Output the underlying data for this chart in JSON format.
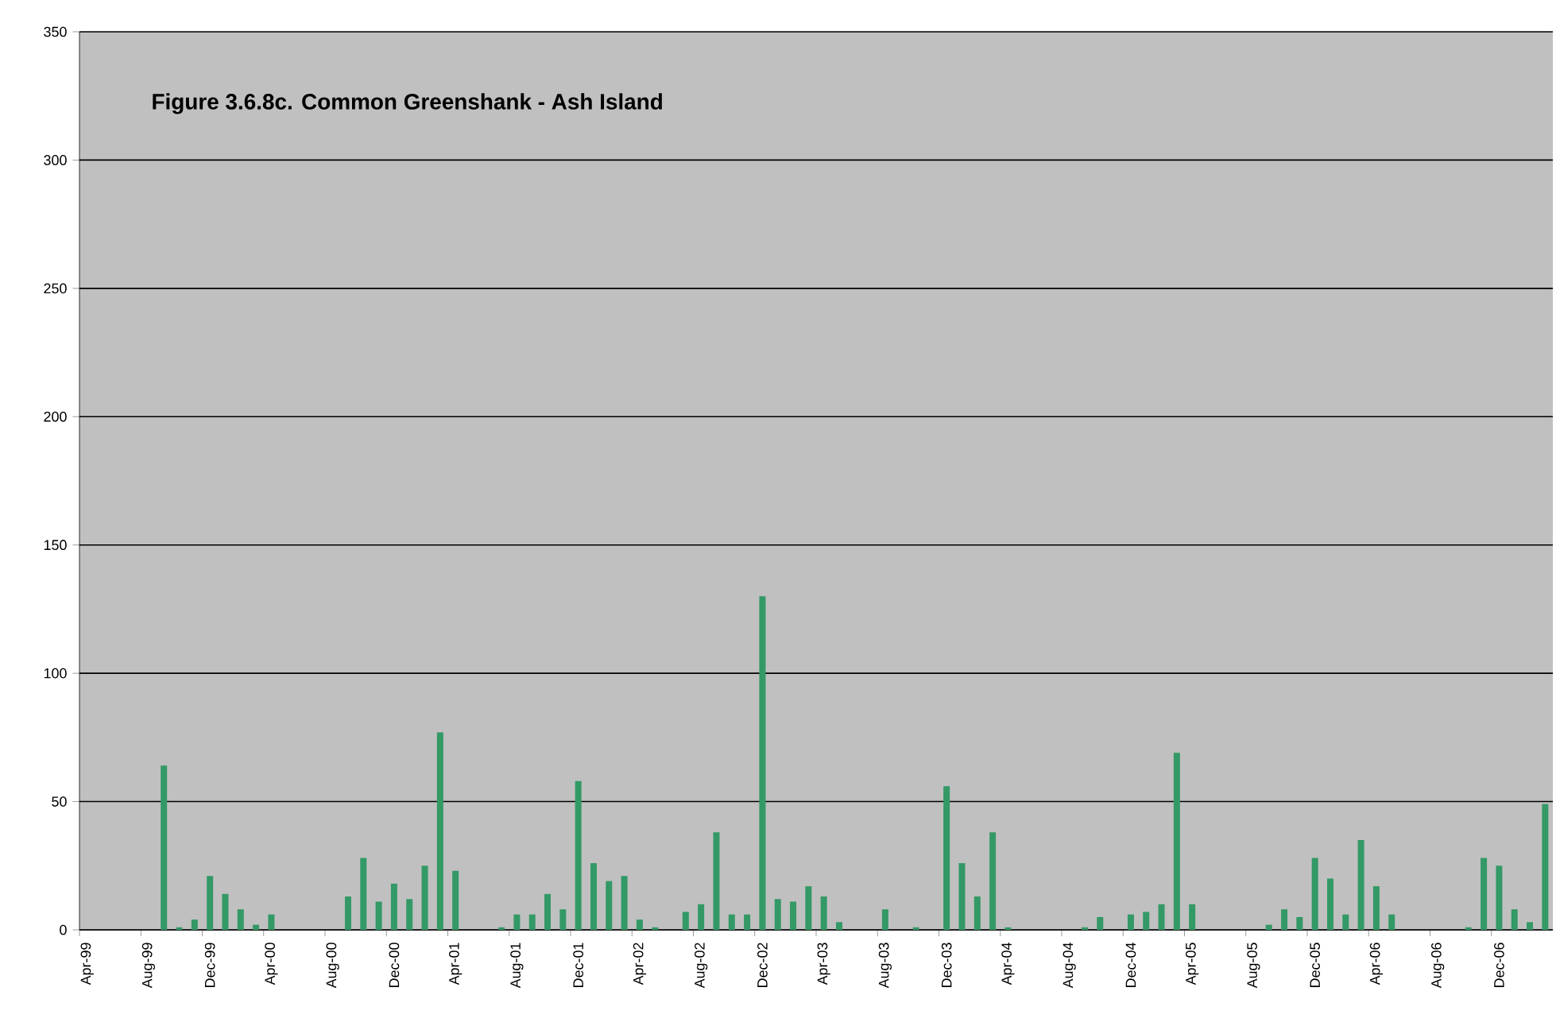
{
  "chart_data": {
    "type": "bar",
    "title": "**Figure 3.6.8c. Common Greenshank - Ash Island**",
    "categories": [
      "Apr-99",
      null,
      null,
      null,
      "Aug-99",
      null,
      null,
      null,
      "Dec-99",
      null,
      null,
      null,
      "Apr-00",
      null,
      null,
      null,
      "Aug-00",
      null,
      null,
      null,
      "Dec-00",
      null,
      null,
      null,
      "Apr-01",
      null,
      null,
      null,
      "Aug-01",
      null,
      null,
      null,
      "Dec-01",
      null,
      null,
      null,
      "Apr-02",
      null,
      null,
      null,
      "Aug-02",
      null,
      null,
      null,
      "Dec-02",
      null,
      null,
      null,
      "Apr-03",
      null,
      null,
      null,
      "Aug-03",
      null,
      null,
      null,
      "Dec-03",
      null,
      null,
      null,
      "Apr-04",
      null,
      null,
      null,
      "Aug-04",
      null,
      null,
      null,
      "Dec-04",
      null,
      null,
      null,
      "Apr-05",
      null,
      null,
      null,
      "Aug-05",
      null,
      null,
      null,
      "Dec-05",
      null,
      null,
      null,
      "Apr-06",
      null,
      null,
      null,
      "Aug-06",
      null,
      null,
      null,
      "Dec-06",
      null,
      null,
      null
    ],
    "values": [
      0,
      0,
      0,
      0,
      0,
      64,
      1,
      4,
      21,
      14,
      8,
      2,
      6,
      0,
      0,
      0,
      0,
      13,
      28,
      11,
      18,
      12,
      25,
      77,
      23,
      0,
      0,
      1,
      6,
      6,
      14,
      8,
      58,
      26,
      19,
      21,
      4,
      1,
      0,
      7,
      10,
      38,
      6,
      6,
      130,
      12,
      11,
      17,
      13,
      3,
      0,
      0,
      8,
      0,
      1,
      0,
      56,
      26,
      13,
      38,
      1,
      0,
      0,
      0,
      0,
      1,
      5,
      0,
      6,
      7,
      10,
      69,
      10,
      0,
      0,
      0,
      0,
      2,
      8,
      5,
      28,
      20,
      6,
      35,
      17,
      6,
      0,
      0,
      0,
      0,
      1,
      28,
      25,
      8,
      3,
      49
    ],
    "color": "#339966",
    "ylim": [
      0,
      350
    ],
    "yticks": [
      0,
      50,
      100,
      150,
      200,
      250,
      300,
      350
    ],
    "grid": "y"
  }
}
